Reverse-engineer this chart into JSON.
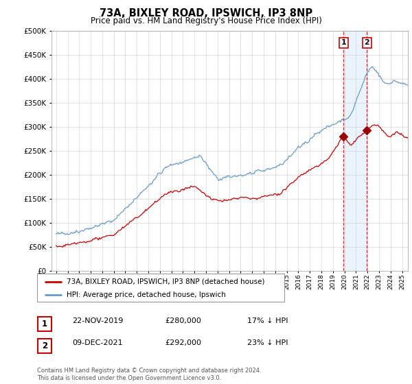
{
  "title": "73A, BIXLEY ROAD, IPSWICH, IP3 8NP",
  "subtitle": "Price paid vs. HM Land Registry's House Price Index (HPI)",
  "ytick_values": [
    0,
    50000,
    100000,
    150000,
    200000,
    250000,
    300000,
    350000,
    400000,
    450000,
    500000
  ],
  "ylim": [
    0,
    500000
  ],
  "x_start_year": 1995,
  "x_end_year": 2025,
  "legend_entries": [
    "73A, BIXLEY ROAD, IPSWICH, IP3 8NP (detached house)",
    "HPI: Average price, detached house, Ipswich"
  ],
  "annotation1": {
    "label": "1",
    "date": "22-NOV-2019",
    "price": "£280,000",
    "pct": "17% ↓ HPI",
    "year": 2019.92
  },
  "annotation2": {
    "label": "2",
    "date": "09-DEC-2021",
    "price": "£292,000",
    "pct": "23% ↓ HPI",
    "year": 2021.94
  },
  "sale1_price": 280000,
  "sale2_price": 292000,
  "red_line_color": "#cc0000",
  "blue_line_color": "#6699cc",
  "grid_color": "#cccccc",
  "footer": "Contains HM Land Registry data © Crown copyright and database right 2024.\nThis data is licensed under the Open Government Licence v3.0.",
  "shade_color": "#ddeeff",
  "dashed_line_color": "#cc0000"
}
